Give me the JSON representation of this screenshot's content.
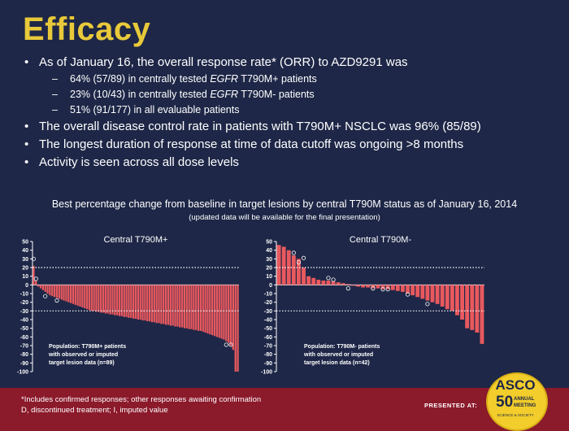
{
  "slide": {
    "title": "Efficacy",
    "bullets": [
      {
        "text": "As of January 16, the overall response rate* (ORR) to AZD9291 was"
      },
      {
        "sub": true,
        "pre": "64% (57/89) in centrally tested ",
        "em": "EGFR",
        "post": " T790M+ patients"
      },
      {
        "sub": true,
        "pre": "23% (10/43) in centrally tested ",
        "em": "EGFR",
        "post": " T790M- patients"
      },
      {
        "sub": true,
        "pre": "51% (91/177) in all evaluable patients",
        "em": "",
        "post": ""
      },
      {
        "text": "The overall disease control rate in patients with T790M+ NSCLC was 96% (85/89)"
      },
      {
        "text": "The longest duration of response at time of data cutoff was ongoing >8 months"
      },
      {
        "text": "Activity is seen across all dose levels"
      }
    ],
    "figure_caption": "Best percentage change from baseline in target lesions by central T790M status as of January 16, 2014",
    "figure_subcaption": "(updated data will be available for the final presentation)"
  },
  "chart_data": [
    {
      "type": "bar",
      "title": "Central T790M+",
      "ylim": [
        -100,
        50
      ],
      "yticks": [
        50,
        40,
        30,
        20,
        10,
        0,
        -10,
        -20,
        -30,
        -40,
        -50,
        -60,
        -70,
        -80,
        -90,
        -100
      ],
      "reference_lines": [
        20,
        -30
      ],
      "bar_color": "#e8595e",
      "legend_text": [
        "Population: T790M+ patients",
        "with observed or imputed",
        "target lesion data (n=89)"
      ],
      "values": [
        22,
        5,
        -2,
        -4,
        -6,
        -8,
        -10,
        -12,
        -13,
        -14,
        -15,
        -16,
        -17,
        -18,
        -19,
        -20,
        -21,
        -22,
        -23,
        -24,
        -25,
        -26,
        -27,
        -28,
        -29,
        -30,
        -30,
        -31,
        -31,
        -32,
        -32,
        -33,
        -33,
        -34,
        -34,
        -35,
        -35,
        -36,
        -36,
        -37,
        -37,
        -38,
        -38,
        -39,
        -39,
        -40,
        -40,
        -41,
        -41,
        -42,
        -42,
        -43,
        -43,
        -44,
        -44,
        -45,
        -45,
        -46,
        -46,
        -47,
        -47,
        -48,
        -48,
        -49,
        -49,
        -50,
        -50,
        -51,
        -51,
        -52,
        -52,
        -53,
        -53,
        -54,
        -55,
        -56,
        -57,
        -58,
        -59,
        -60,
        -61,
        -62,
        -63,
        -65,
        -67,
        -70,
        -75,
        -100,
        -100
      ],
      "markers": [
        {
          "index": 0,
          "value": 30,
          "label": "D"
        },
        {
          "index": 1,
          "value": 7,
          "label": "I"
        },
        {
          "index": 5,
          "value": -13,
          "label": "D"
        },
        {
          "index": 10,
          "value": -18,
          "label": "D"
        },
        {
          "index": 83,
          "value": -69,
          "label": "D"
        },
        {
          "index": 85,
          "value": -69,
          "label": "D"
        }
      ]
    },
    {
      "type": "bar",
      "title": "Central T790M-",
      "ylim": [
        -100,
        50
      ],
      "yticks": [
        50,
        40,
        30,
        20,
        10,
        0,
        -10,
        -20,
        -30,
        -40,
        -50,
        -60,
        -70,
        -80,
        -90,
        -100
      ],
      "reference_lines": [
        20,
        -30
      ],
      "bar_color": "#e8595e",
      "legend_text": [
        "Population: T790M- patients",
        "with observed or imputed",
        "target lesion data (n=42)"
      ],
      "values": [
        46,
        44,
        40,
        34,
        30,
        20,
        10,
        8,
        6,
        5,
        5,
        4,
        3,
        2,
        1,
        -1,
        -2,
        -3,
        -3,
        -4,
        -4,
        -5,
        -5,
        -6,
        -7,
        -8,
        -10,
        -12,
        -14,
        -16,
        -18,
        -20,
        -22,
        -25,
        -28,
        -30,
        -35,
        -40,
        -50,
        -52,
        -55,
        -68
      ],
      "markers": [
        {
          "index": 3,
          "value": 37,
          "label": "D"
        },
        {
          "index": 5,
          "value": 31,
          "label": "D"
        },
        {
          "index": 4,
          "value": 26,
          "label": "I"
        },
        {
          "index": 10,
          "value": 8,
          "label": "D"
        },
        {
          "index": 11,
          "value": 6,
          "label": "D"
        },
        {
          "index": 14,
          "value": -4,
          "label": "D"
        },
        {
          "index": 19,
          "value": -4,
          "label": "D"
        },
        {
          "index": 21,
          "value": -5,
          "label": "D"
        },
        {
          "index": 22,
          "value": -5,
          "label": "D"
        },
        {
          "index": 26,
          "value": -11,
          "label": "D"
        },
        {
          "index": 30,
          "value": -22,
          "label": "D"
        }
      ]
    }
  ],
  "footer": {
    "note_line1": "*Includes confirmed responses; other responses awaiting confirmation",
    "note_line2": "D, discontinued treatment; I, imputed value",
    "presented_label": "PRESENTED AT:",
    "logo": {
      "name": "ASCO",
      "number": "50",
      "line1": "ANNUAL",
      "line2": "MEETING",
      "tagline": "SCIENCE & SOCIETY"
    },
    "color": "#8b1a2b"
  }
}
